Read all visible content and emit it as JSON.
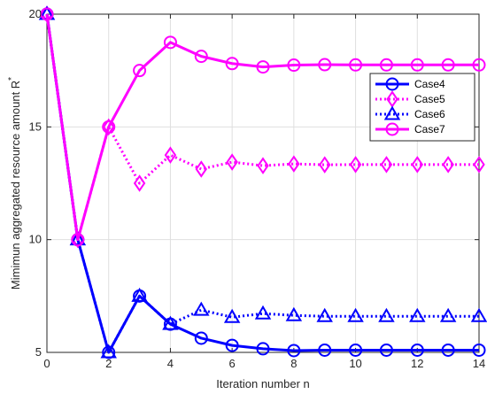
{
  "chart_data": {
    "type": "line",
    "title": "",
    "xlabel": "Iteration number n",
    "ylabel_main": "Mimimun aggregated resource amount R",
    "ylabel_superscript": "*",
    "xlim": [
      0,
      14
    ],
    "ylim": [
      5,
      20
    ],
    "xticks": [
      0,
      2,
      4,
      6,
      8,
      10,
      12,
      14
    ],
    "yticks": [
      5,
      10,
      15,
      20
    ],
    "grid": true,
    "legend_position": "top-right",
    "x": [
      0,
      1,
      2,
      3,
      4,
      5,
      6,
      7,
      8,
      9,
      10,
      11,
      12,
      13,
      14
    ],
    "series": [
      {
        "name": "Case4",
        "color": "#0000ff",
        "line_style": "solid",
        "marker": "circle",
        "values": [
          20,
          10,
          5,
          7.5,
          6.25,
          5.63,
          5.31,
          5.16,
          5.08,
          5.1,
          5.1,
          5.1,
          5.1,
          5.1,
          5.1
        ]
      },
      {
        "name": "Case5",
        "color": "#ff00ff",
        "line_style": "dotted",
        "marker": "diamond",
        "values": [
          20,
          10,
          15,
          12.5,
          13.75,
          13.13,
          13.44,
          13.28,
          13.36,
          13.32,
          13.33,
          13.33,
          13.33,
          13.33,
          13.33
        ]
      },
      {
        "name": "Case6",
        "color": "#0000ff",
        "line_style": "dotted",
        "marker": "triangle",
        "values": [
          20,
          10,
          5,
          7.5,
          6.25,
          6.88,
          6.56,
          6.72,
          6.64,
          6.6,
          6.6,
          6.6,
          6.6,
          6.6,
          6.6
        ]
      },
      {
        "name": "Case7",
        "color": "#ff00ff",
        "line_style": "solid",
        "marker": "circle",
        "values": [
          20,
          10,
          15,
          17.5,
          18.75,
          18.13,
          17.81,
          17.66,
          17.74,
          17.76,
          17.75,
          17.75,
          17.75,
          17.75,
          17.75
        ]
      }
    ]
  }
}
